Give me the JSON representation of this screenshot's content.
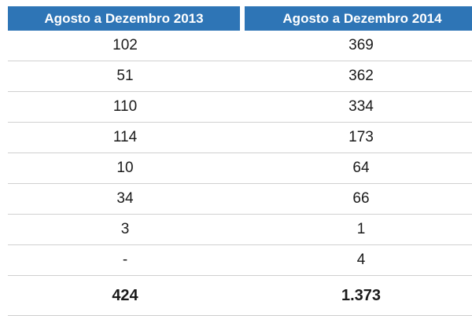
{
  "chart_data": {
    "type": "table",
    "columns": [
      "Agosto a Dezembro 2013",
      "Agosto a Dezembro 2014"
    ],
    "rows": [
      [
        "102",
        "369"
      ],
      [
        "51",
        "362"
      ],
      [
        "110",
        "334"
      ],
      [
        "114",
        "173"
      ],
      [
        "10",
        "64"
      ],
      [
        "34",
        "66"
      ],
      [
        "3",
        "1"
      ],
      [
        "-",
        "4"
      ]
    ],
    "totals": [
      "424",
      "1.373"
    ],
    "title": "",
    "layout": {
      "grid": "horizontal-lines",
      "header_position": "top"
    }
  },
  "colors": {
    "header_bg": "#2E75B6",
    "header_text": "#FFFFFF",
    "grid_line": "#D0D0D0",
    "body_text": "#1A1A1A",
    "background": "#FFFFFF"
  }
}
